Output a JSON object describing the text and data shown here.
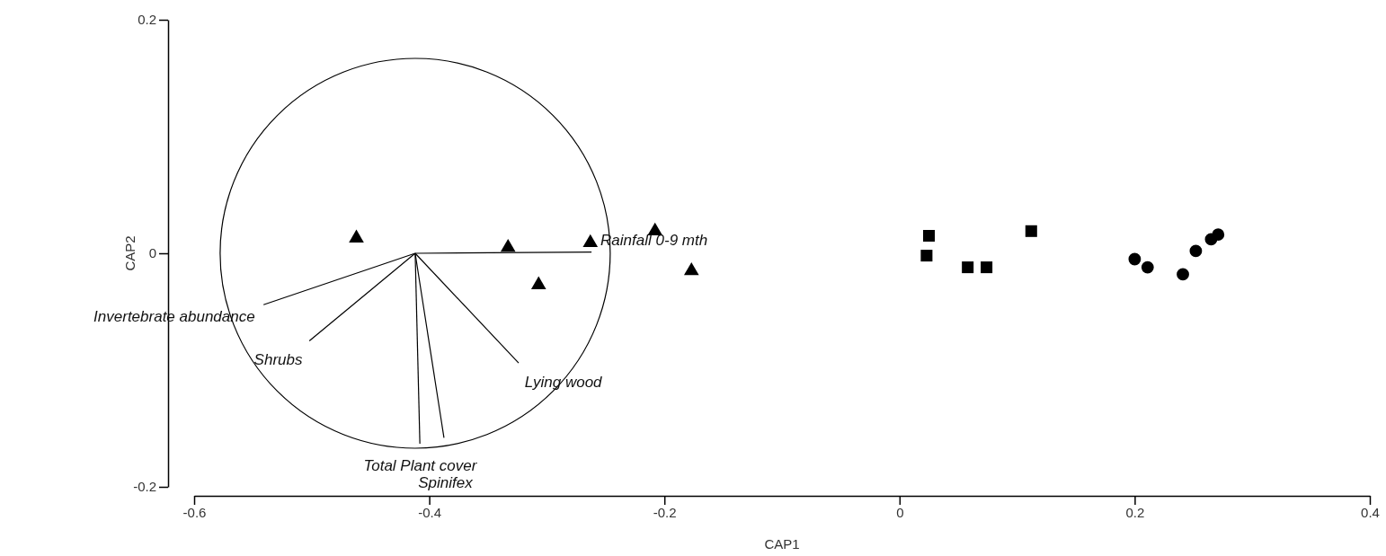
{
  "chart_data": {
    "type": "scatter",
    "xlabel": "CAP1",
    "ylabel": "CAP2",
    "xlim": [
      -0.6,
      0.4
    ],
    "ylim": [
      -0.2,
      0.2
    ],
    "xticks": [
      -0.6,
      -0.4,
      -0.2,
      0,
      0.2,
      0.4
    ],
    "yticks": [
      -0.2,
      0,
      0.2
    ],
    "grid": false,
    "series": [
      {
        "type": "line",
        "color": "#000000",
        "x": [
          -0.412,
          -0.262
        ],
        "values": [
          0,
          0.001
        ]
      },
      {
        "type": "line",
        "color": "#000000",
        "x": [
          -0.412,
          -0.541
        ],
        "values": [
          0,
          -0.044
        ]
      },
      {
        "type": "line",
        "color": "#000000",
        "x": [
          -0.412,
          -0.502
        ],
        "values": [
          0,
          -0.075
        ]
      },
      {
        "type": "line",
        "color": "#000000",
        "x": [
          -0.412,
          -0.324
        ],
        "values": [
          0,
          -0.094
        ]
      },
      {
        "type": "line",
        "color": "#000000",
        "x": [
          -0.412,
          -0.408
        ],
        "values": [
          0,
          -0.163
        ]
      },
      {
        "type": "line",
        "color": "#000000",
        "x": [
          -0.412,
          -0.3875
        ],
        "values": [
          0,
          -0.158
        ]
      },
      {
        "color": "#000000",
        "marker": "triangle",
        "x": [
          -0.462,
          -0.333,
          -0.307,
          -0.263,
          -0.208,
          -0.177
        ],
        "values": [
          0.013,
          0.005,
          -0.027,
          0.009,
          0.019,
          -0.015
        ]
      },
      {
        "color": "#000000",
        "marker": "square",
        "x": [
          0.025,
          0.023,
          0.058,
          0.074,
          0.112
        ],
        "values": [
          0.015,
          -0.002,
          -0.012,
          -0.012,
          0.019
        ]
      },
      {
        "color": "#000000",
        "marker": "circle",
        "x": [
          0.2,
          0.211,
          0.241,
          0.252,
          0.265,
          0.271
        ],
        "values": [
          -0.005,
          -0.012,
          -0.018,
          0.002,
          0.012,
          0.016
        ]
      }
    ],
    "annotations": [
      {
        "text": "Rainfall 0-9 mth",
        "x": -0.262,
        "y": 0.001
      },
      {
        "text": "Invertebrate abundance",
        "x": -0.541,
        "y": -0.044
      },
      {
        "text": "Shrubs",
        "x": -0.502,
        "y": -0.075
      },
      {
        "text": "Lying wood",
        "x": -0.324,
        "y": -0.094
      },
      {
        "text": "Total Plant cover",
        "x": -0.408,
        "y": -0.163
      },
      {
        "text": "Spinifex",
        "x": -0.3875,
        "y": -0.158
      }
    ]
  }
}
